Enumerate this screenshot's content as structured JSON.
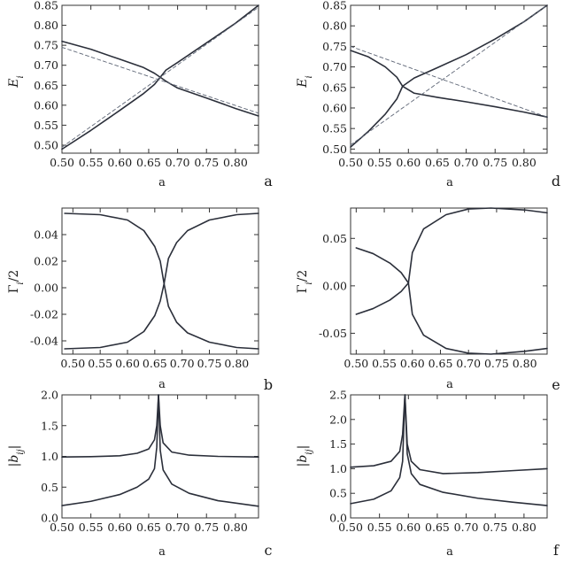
{
  "colors": {
    "curve": "#2b2f3a",
    "dashed": "#5d6575",
    "frame": "#333333"
  },
  "chart_data": [
    {
      "panel": "a",
      "type": "line",
      "ylabel": "E_i",
      "xlabel": "a",
      "xlim": [
        0.5,
        0.84
      ],
      "ylim": [
        0.48,
        0.85
      ],
      "xticks": [
        "0.50",
        "0.55",
        "0.60",
        "0.65",
        "0.70",
        "0.75",
        "0.80"
      ],
      "yticks": [
        "0.50",
        "0.55",
        "0.60",
        "0.65",
        "0.70",
        "0.75",
        "0.80",
        "0.85"
      ],
      "series": [
        {
          "style": "solid",
          "x": [
            0.5,
            0.55,
            0.6,
            0.64,
            0.66,
            0.67
          ],
          "y": [
            0.76,
            0.74,
            0.715,
            0.695,
            0.68,
            0.67
          ]
        },
        {
          "style": "solid",
          "x": [
            0.67,
            0.68,
            0.7,
            0.75,
            0.8,
            0.84
          ],
          "y": [
            0.67,
            0.66,
            0.643,
            0.618,
            0.592,
            0.573
          ]
        },
        {
          "style": "solid",
          "x": [
            0.5,
            0.55,
            0.6,
            0.64,
            0.66,
            0.67
          ],
          "y": [
            0.49,
            0.537,
            0.587,
            0.628,
            0.652,
            0.67
          ]
        },
        {
          "style": "solid",
          "x": [
            0.67,
            0.68,
            0.7,
            0.75,
            0.8,
            0.84
          ],
          "y": [
            0.67,
            0.688,
            0.707,
            0.756,
            0.805,
            0.85
          ]
        },
        {
          "style": "dashed",
          "x": [
            0.5,
            0.84
          ],
          "y": [
            0.745,
            0.58
          ]
        },
        {
          "style": "dashed",
          "x": [
            0.5,
            0.84
          ],
          "y": [
            0.495,
            0.845
          ]
        }
      ]
    },
    {
      "panel": "b",
      "type": "line",
      "ylabel": "Γ_i/2",
      "xlabel": "a",
      "xlim": [
        0.48,
        0.84
      ],
      "ylim": [
        -0.05,
        0.06
      ],
      "xticks": [
        "0.50",
        "0.55",
        "0.60",
        "0.65",
        "0.70",
        "0.75",
        "0.80"
      ],
      "yticks": [
        "0.04",
        "0.02",
        "0.00",
        "-0.02",
        "-0.04"
      ],
      "series": [
        {
          "style": "solid",
          "x": [
            0.485,
            0.55,
            0.6,
            0.63,
            0.65,
            0.66,
            0.667
          ],
          "y": [
            0.056,
            0.055,
            0.051,
            0.043,
            0.031,
            0.02,
            0.003
          ]
        },
        {
          "style": "solid",
          "x": [
            0.667,
            0.675,
            0.69,
            0.71,
            0.75,
            0.8,
            0.84
          ],
          "y": [
            0.003,
            0.022,
            0.034,
            0.043,
            0.051,
            0.055,
            0.056
          ]
        },
        {
          "style": "solid",
          "x": [
            0.485,
            0.55,
            0.6,
            0.63,
            0.65,
            0.66,
            0.667
          ],
          "y": [
            -0.046,
            -0.045,
            -0.041,
            -0.033,
            -0.021,
            -0.01,
            0.003
          ]
        },
        {
          "style": "solid",
          "x": [
            0.667,
            0.675,
            0.69,
            0.71,
            0.75,
            0.8,
            0.84
          ],
          "y": [
            0.003,
            -0.014,
            -0.026,
            -0.034,
            -0.041,
            -0.045,
            -0.046
          ]
        }
      ]
    },
    {
      "panel": "c",
      "type": "line",
      "ylabel": "|b_ij|",
      "xlabel": "a",
      "xlim": [
        0.5,
        0.84
      ],
      "ylim": [
        0.0,
        2.0
      ],
      "xticks": [
        "0.50",
        "0.55",
        "0.60",
        "0.65",
        "0.70",
        "0.75",
        "0.80"
      ],
      "yticks": [
        "0.0",
        "0.5",
        "1.0",
        "1.5",
        "2.0"
      ],
      "series": [
        {
          "style": "solid",
          "x": [
            0.5,
            0.55,
            0.6,
            0.63,
            0.65,
            0.66,
            0.664,
            0.667
          ],
          "y": [
            0.99,
            0.995,
            1.01,
            1.05,
            1.12,
            1.27,
            1.5,
            2.0
          ]
        },
        {
          "style": "solid",
          "x": [
            0.667,
            0.67,
            0.675,
            0.69,
            0.72,
            0.77,
            0.84
          ],
          "y": [
            2.0,
            1.5,
            1.22,
            1.07,
            1.02,
            1.0,
            0.99
          ]
        },
        {
          "style": "solid",
          "x": [
            0.5,
            0.55,
            0.6,
            0.63,
            0.65,
            0.66,
            0.664,
            0.667
          ],
          "y": [
            0.2,
            0.27,
            0.38,
            0.5,
            0.63,
            0.8,
            1.15,
            2.0
          ]
        },
        {
          "style": "solid",
          "x": [
            0.667,
            0.67,
            0.675,
            0.69,
            0.72,
            0.77,
            0.84
          ],
          "y": [
            2.0,
            1.1,
            0.78,
            0.55,
            0.4,
            0.28,
            0.19
          ]
        }
      ]
    },
    {
      "panel": "d",
      "type": "line",
      "ylabel": "E_i",
      "xlabel": "a",
      "xlim": [
        0.5,
        0.84
      ],
      "ylim": [
        0.49,
        0.85
      ],
      "xticks": [
        "0.50",
        "0.55",
        "0.60",
        "0.65",
        "0.70",
        "0.75",
        "0.80"
      ],
      "yticks": [
        "0.50",
        "0.55",
        "0.60",
        "0.65",
        "0.70",
        "0.75",
        "0.80",
        "0.85"
      ],
      "series": [
        {
          "style": "solid",
          "x": [
            0.5,
            0.53,
            0.56,
            0.58,
            0.59
          ],
          "y": [
            0.74,
            0.725,
            0.7,
            0.675,
            0.653
          ]
        },
        {
          "style": "solid",
          "x": [
            0.5,
            0.53,
            0.56,
            0.58,
            0.59
          ],
          "y": [
            0.505,
            0.542,
            0.585,
            0.622,
            0.653
          ]
        },
        {
          "style": "solid",
          "x": [
            0.59,
            0.61,
            0.65,
            0.7,
            0.75,
            0.8,
            0.84
          ],
          "y": [
            0.653,
            0.673,
            0.698,
            0.73,
            0.768,
            0.81,
            0.85
          ]
        },
        {
          "style": "solid",
          "x": [
            0.59,
            0.61,
            0.65,
            0.7,
            0.75,
            0.8,
            0.84
          ],
          "y": [
            0.653,
            0.636,
            0.626,
            0.615,
            0.603,
            0.59,
            0.578
          ]
        },
        {
          "style": "dashed",
          "x": [
            0.5,
            0.84
          ],
          "y": [
            0.75,
            0.578
          ]
        },
        {
          "style": "dashed",
          "x": [
            0.5,
            0.84
          ],
          "y": [
            0.51,
            0.85
          ]
        }
      ]
    },
    {
      "panel": "e",
      "type": "line",
      "ylabel": "Γ_i/2",
      "xlabel": "a",
      "xlim": [
        0.49,
        0.84
      ],
      "ylim": [
        -0.072,
        0.082
      ],
      "xticks": [
        "0.50",
        "0.55",
        "0.60",
        "0.65",
        "0.70",
        "0.75",
        "0.80"
      ],
      "yticks": [
        "0.05",
        "0.00",
        "-0.05"
      ],
      "series": [
        {
          "style": "solid",
          "x": [
            0.5,
            0.53,
            0.56,
            0.58,
            0.593
          ],
          "y": [
            0.04,
            0.034,
            0.024,
            0.014,
            0.003
          ]
        },
        {
          "style": "solid",
          "x": [
            0.5,
            0.53,
            0.56,
            0.58,
            0.593
          ],
          "y": [
            -0.03,
            -0.024,
            -0.015,
            -0.006,
            0.003
          ]
        },
        {
          "style": "solid",
          "x": [
            0.593,
            0.6,
            0.62,
            0.66,
            0.7,
            0.74,
            0.8,
            0.84
          ],
          "y": [
            0.003,
            0.035,
            0.06,
            0.075,
            0.081,
            0.082,
            0.08,
            0.077
          ]
        },
        {
          "style": "solid",
          "x": [
            0.593,
            0.6,
            0.62,
            0.66,
            0.7,
            0.74,
            0.8,
            0.84
          ],
          "y": [
            0.003,
            -0.03,
            -0.052,
            -0.066,
            -0.071,
            -0.072,
            -0.069,
            -0.066
          ]
        }
      ]
    },
    {
      "panel": "f",
      "type": "line",
      "ylabel": "|b_ij|",
      "xlabel": "a",
      "xlim": [
        0.5,
        0.84
      ],
      "ylim": [
        0.0,
        2.5
      ],
      "xticks": [
        "0.50",
        "0.55",
        "0.60",
        "0.65",
        "0.70",
        "0.75",
        "0.80"
      ],
      "yticks": [
        "0.0",
        "0.5",
        "1.0",
        "1.5",
        "2.0",
        "2.5"
      ],
      "series": [
        {
          "style": "solid",
          "x": [
            0.5,
            0.54,
            0.57,
            0.585,
            0.59,
            0.594
          ],
          "y": [
            1.03,
            1.06,
            1.15,
            1.35,
            1.7,
            2.5
          ]
        },
        {
          "style": "solid",
          "x": [
            0.594,
            0.598,
            0.605,
            0.62,
            0.66,
            0.72,
            0.78,
            0.84
          ],
          "y": [
            2.5,
            1.5,
            1.15,
            0.98,
            0.9,
            0.92,
            0.96,
            1.0
          ]
        },
        {
          "style": "solid",
          "x": [
            0.5,
            0.54,
            0.57,
            0.585,
            0.59,
            0.594
          ],
          "y": [
            0.29,
            0.38,
            0.55,
            0.82,
            1.15,
            2.5
          ]
        },
        {
          "style": "solid",
          "x": [
            0.594,
            0.598,
            0.605,
            0.62,
            0.66,
            0.72,
            0.78,
            0.84
          ],
          "y": [
            2.5,
            1.3,
            0.9,
            0.68,
            0.52,
            0.4,
            0.32,
            0.25
          ]
        }
      ]
    }
  ]
}
